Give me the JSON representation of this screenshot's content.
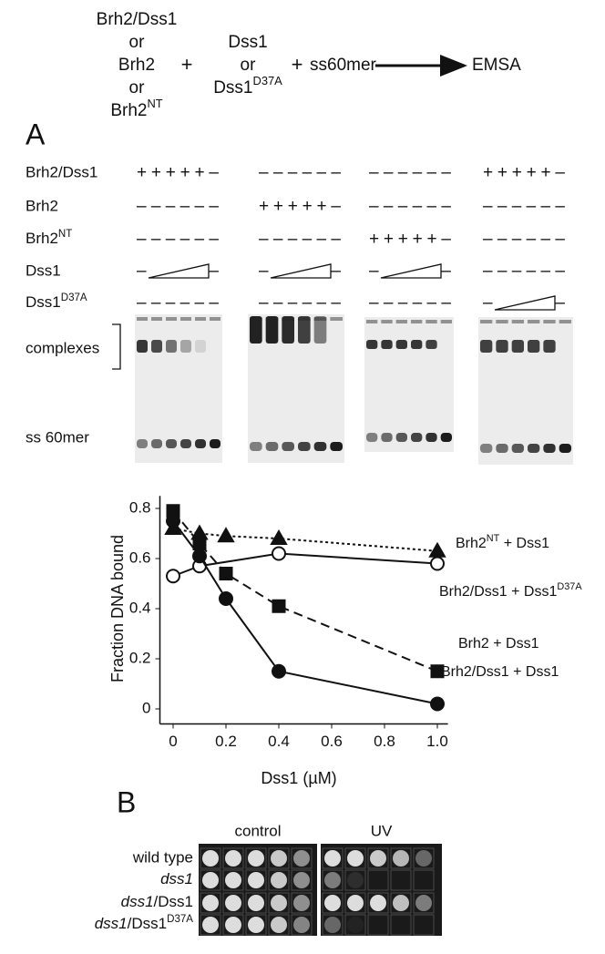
{
  "scheme": {
    "proteins": [
      "Brh2/Dss1",
      "or",
      "Brh2",
      "or",
      [
        {
          "text": "Brh2"
        },
        {
          "text": "NT",
          "sup": true
        }
      ]
    ],
    "plus1": "+",
    "dss1": [
      "Dss1",
      "or",
      [
        {
          "text": "Dss1"
        },
        {
          "text": "D37A",
          "sup": true
        }
      ]
    ],
    "plus2": "+",
    "substrate": "ss60mer",
    "readout": "EMSA"
  },
  "panel_a": {
    "label": "A",
    "rows": [
      {
        "label": "Brh2/Dss1",
        "lanes": [
          "+++++–",
          "––––––",
          "––––––",
          "+++++–"
        ]
      },
      {
        "label": "Brh2",
        "lanes": [
          "––––––",
          "+++++–",
          "––––––",
          "––––––"
        ]
      },
      {
        "label": [
          {
            "text": "Brh2"
          },
          {
            "text": "NT",
            "sup": true
          }
        ],
        "lanes": [
          "––––––",
          "––––––",
          "+++++–",
          "––––––"
        ]
      },
      {
        "label": "Dss1",
        "lanes": [
          {
            "start": "–",
            "end": "–"
          },
          {
            "start": "–",
            "end": "–"
          },
          {
            "start": "–",
            "end": "–"
          },
          "––––––"
        ]
      },
      {
        "label": [
          {
            "text": "Dss1"
          },
          {
            "text": "D37A",
            "sup": true
          }
        ],
        "lanes": [
          "––––––",
          "––––––",
          "––––––",
          {
            "start": "–",
            "end": "–"
          }
        ]
      }
    ],
    "gel_labels": {
      "complexes": "complexes",
      "free": "ss 60mer"
    }
  },
  "chart_data": {
    "type": "line",
    "y_label": "Fraction DNA bound",
    "x_label": "Dss1 (µM)",
    "xlim": [
      -0.05,
      1.04
    ],
    "ylim": [
      -0.06,
      0.85
    ],
    "xticks": [
      0,
      0.2,
      0.4,
      0.6,
      0.8,
      {
        "value": 1,
        "label": "1.0"
      }
    ],
    "yticks": [
      0,
      0.2,
      0.4,
      0.6,
      0.8
    ],
    "series": [
      {
        "name": [
          {
            "text": "Brh2"
          },
          {
            "text": "NT",
            "sup": true
          },
          {
            "text": " + Dss1"
          }
        ],
        "color": "#111111",
        "marker": "triangle",
        "filled": true,
        "dash": "dotted",
        "x": [
          0,
          0.1,
          0.2,
          0.4,
          1
        ],
        "values": [
          0.72,
          0.7,
          0.69,
          0.68,
          0.63
        ]
      },
      {
        "name": [
          {
            "text": "Brh2/Dss1 + Dss1"
          },
          {
            "text": "D37A",
            "sup": true
          }
        ],
        "color": "#111111",
        "marker": "circle",
        "filled": false,
        "dash": "solid",
        "x": [
          0,
          0.1,
          0.4,
          1
        ],
        "values": [
          0.53,
          0.57,
          0.62,
          0.58
        ]
      },
      {
        "name": [
          {
            "text": "Brh2 + Dss1"
          }
        ],
        "color": "#111111",
        "marker": "square",
        "filled": true,
        "dash": "dashed",
        "x": [
          0,
          0.1,
          0.2,
          0.4,
          1
        ],
        "values": [
          0.79,
          0.66,
          0.54,
          0.41,
          0.15
        ]
      },
      {
        "name": [
          {
            "text": "Brh2/Dss1 + Dss1"
          }
        ],
        "color": "#111111",
        "marker": "circle",
        "filled": true,
        "dash": "solid",
        "x": [
          0,
          0.1,
          0.2,
          0.4,
          1
        ],
        "values": [
          0.75,
          0.61,
          0.44,
          0.15,
          0.02
        ]
      }
    ]
  },
  "panel_b": {
    "label": "B",
    "columns": [
      "control",
      "UV"
    ],
    "rows": [
      "wild type",
      [
        {
          "text": "dss1",
          "italic": true
        }
      ],
      [
        {
          "text": "dss1",
          "italic": true
        },
        {
          "text": "/Dss1"
        }
      ],
      [
        {
          "text": "dss1",
          "italic": true
        },
        {
          "text": "/Dss1"
        },
        {
          "text": "D37A",
          "sup": true
        }
      ]
    ]
  }
}
